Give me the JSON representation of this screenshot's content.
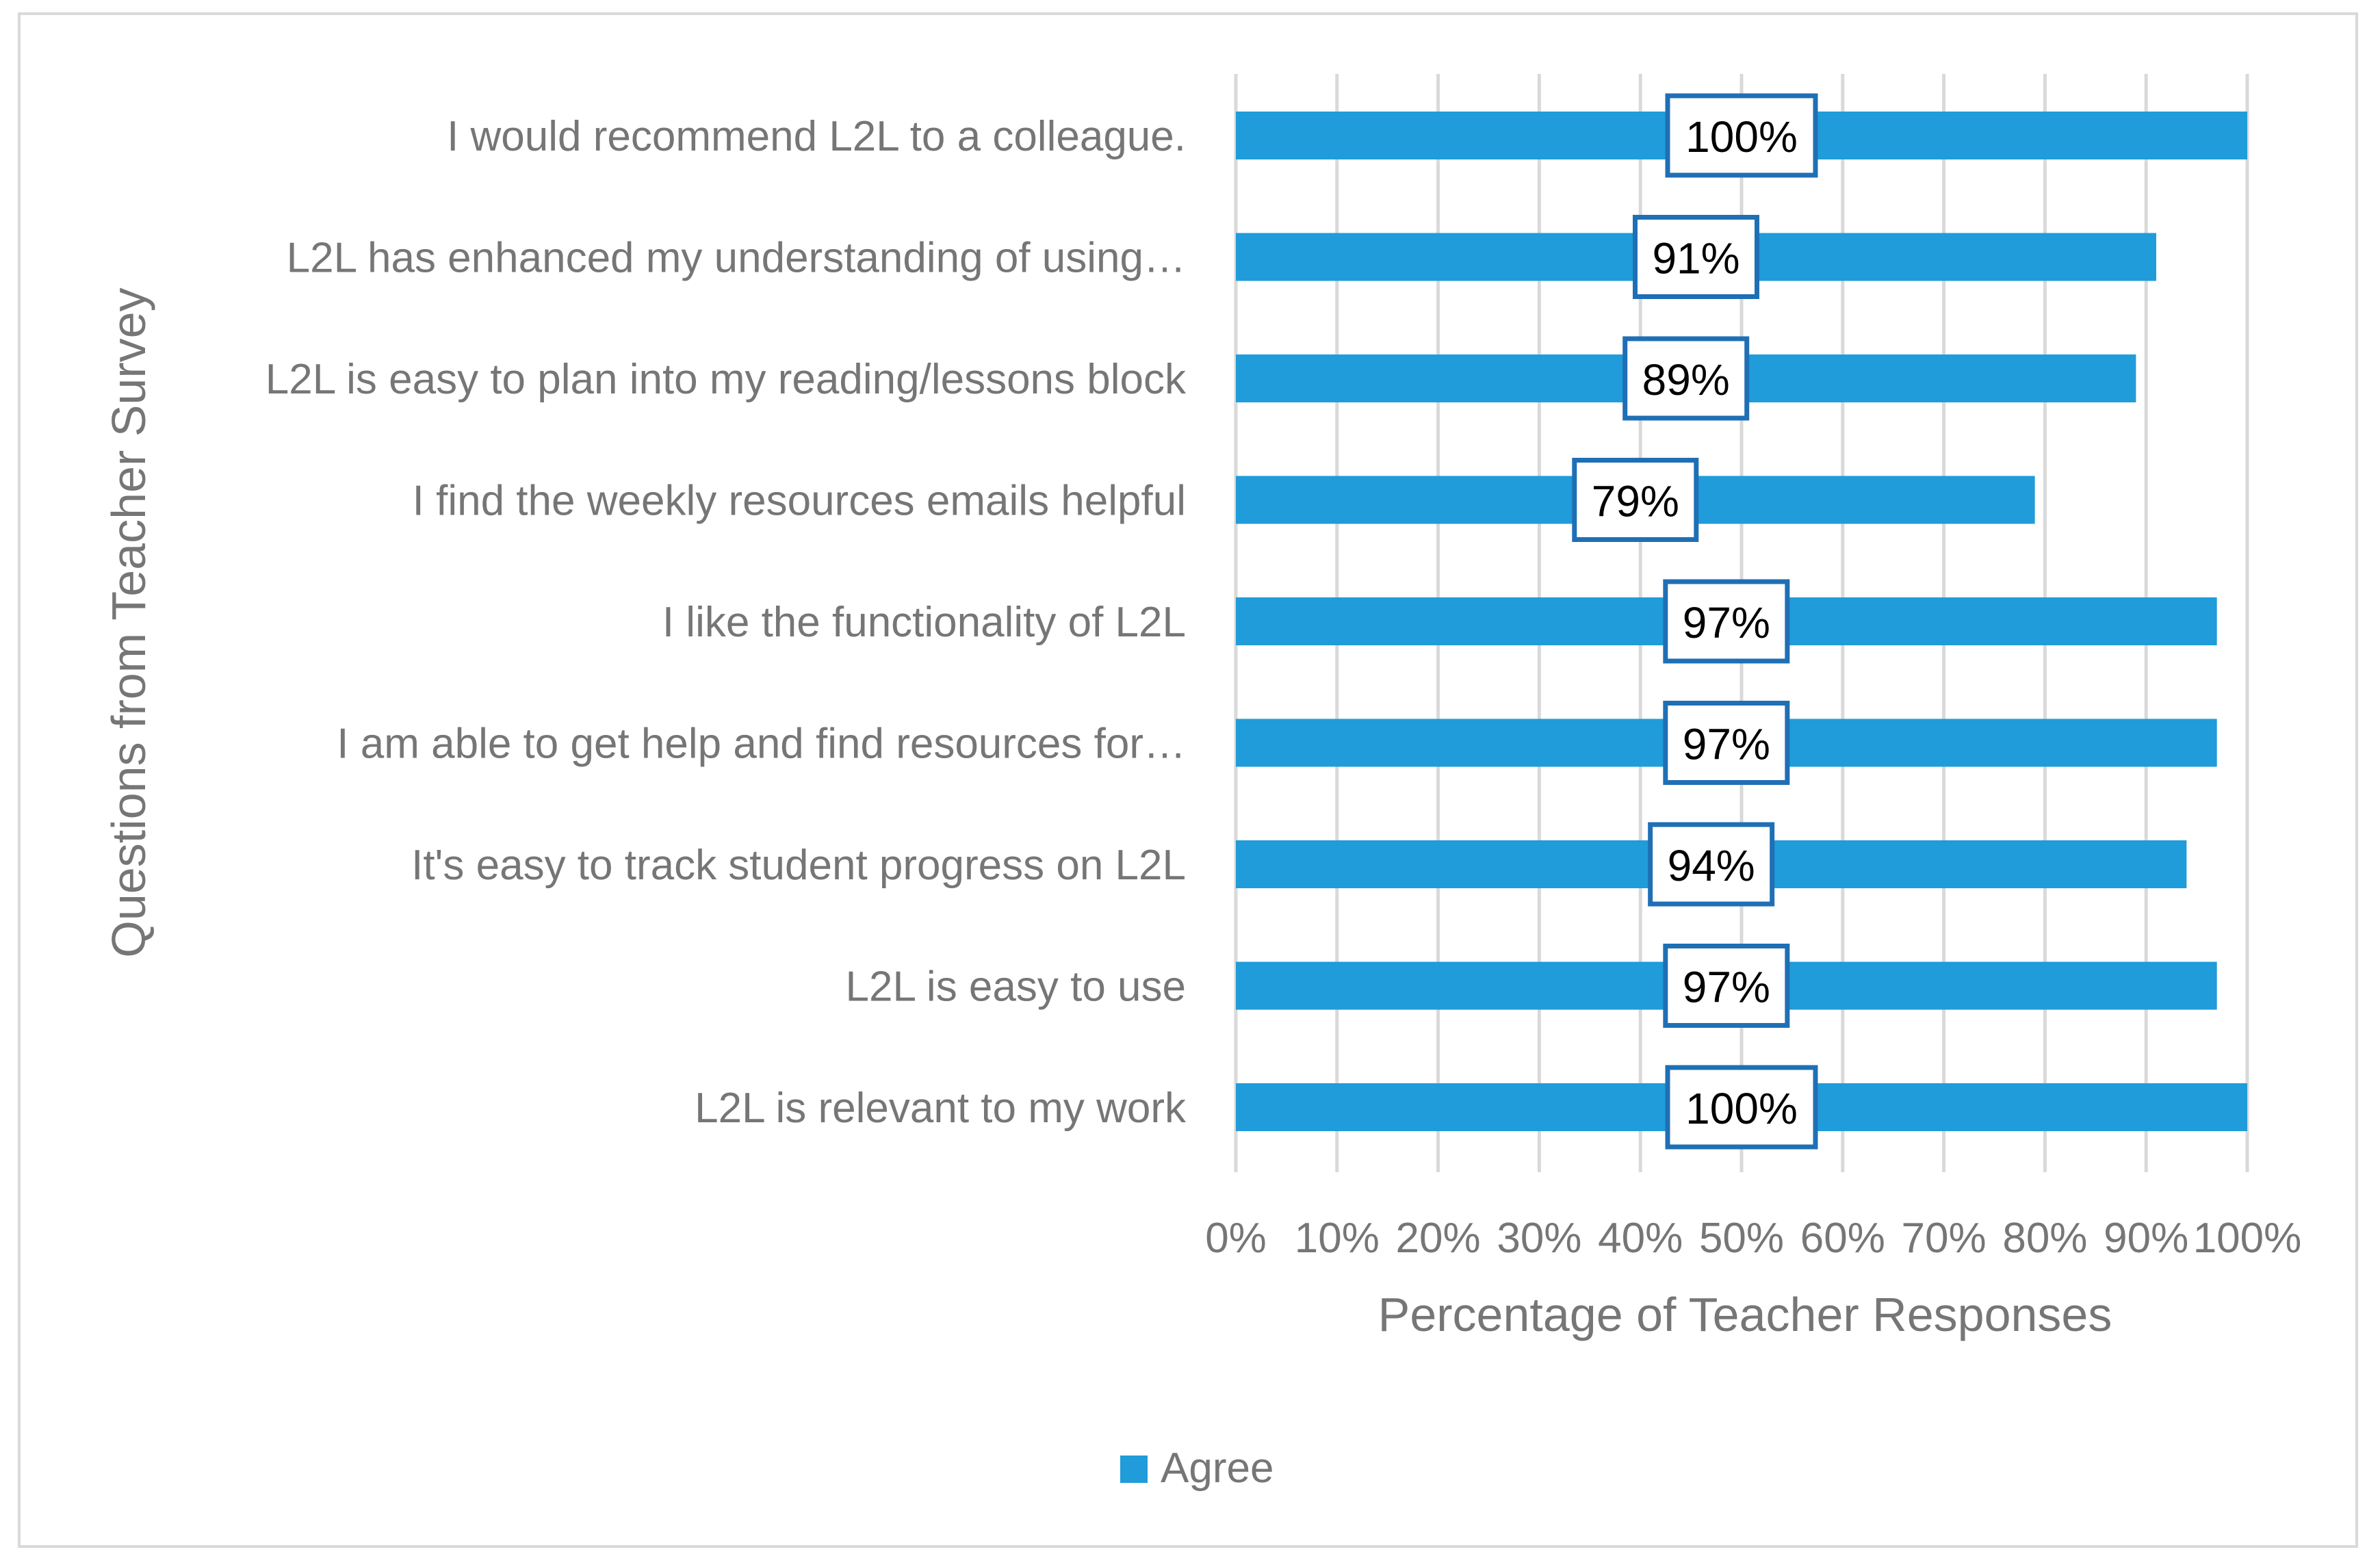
{
  "chart_data": {
    "type": "bar",
    "orientation": "horizontal",
    "title": "",
    "xlabel": "Percentage of Teacher Responses",
    "ylabel": "Questions from Teacher Survey",
    "xlim": [
      0,
      100
    ],
    "x_ticks": [
      "0%",
      "10%",
      "20%",
      "30%",
      "40%",
      "50%",
      "60%",
      "70%",
      "80%",
      "90%",
      "100%"
    ],
    "grid": true,
    "legend_position": "bottom",
    "categories": [
      "I would recommend L2L to a colleague.",
      "L2L has enhanced my understanding of using…",
      "L2L is easy to plan into my reading/lessons block",
      "I find the weekly resources emails helpful",
      "I like the functionality of L2L",
      "I am able to get help and find resources for…",
      "It's easy to track student progress on L2L",
      "L2L is easy to use",
      "L2L is relevant to my work"
    ],
    "series": [
      {
        "name": "Agree",
        "color": "#1f9cd9",
        "values": [
          100,
          91,
          89,
          79,
          97,
          97,
          94,
          97,
          100
        ],
        "labels": [
          "100%",
          "91%",
          "89%",
          "79%",
          "97%",
          "97%",
          "94%",
          "97%",
          "100%"
        ]
      }
    ],
    "label_border_color": "#1f6fb5",
    "gridline_color": "#d9d9d9",
    "text_color": "#767676"
  }
}
